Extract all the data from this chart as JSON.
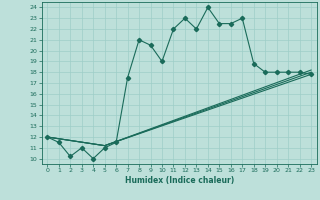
{
  "xlabel": "Humidex (Indice chaleur)",
  "bg_color": "#bde0da",
  "line_color": "#1a6b5a",
  "grid_color": "#9ecec8",
  "xlim": [
    -0.5,
    23.5
  ],
  "ylim": [
    9.5,
    24.5
  ],
  "xticks": [
    0,
    1,
    2,
    3,
    4,
    5,
    6,
    7,
    8,
    9,
    10,
    11,
    12,
    13,
    14,
    15,
    16,
    17,
    18,
    19,
    20,
    21,
    22,
    23
  ],
  "yticks": [
    10,
    11,
    12,
    13,
    14,
    15,
    16,
    17,
    18,
    19,
    20,
    21,
    22,
    23,
    24
  ],
  "line1_x": [
    0,
    1,
    2,
    3,
    4,
    5,
    6,
    7,
    8,
    9,
    10,
    11,
    12,
    13,
    14,
    15,
    16,
    17,
    18,
    19,
    20,
    21,
    22,
    23
  ],
  "line1_y": [
    12,
    11.5,
    10.2,
    11,
    10,
    11,
    11.5,
    17.5,
    21,
    20.5,
    19,
    22,
    23,
    22,
    24,
    22.5,
    22.5,
    23,
    18.8,
    18,
    18,
    18,
    18,
    17.8
  ],
  "line2_x": [
    0,
    5,
    23
  ],
  "line2_y": [
    12,
    11.2,
    17.8
  ],
  "line3_x": [
    0,
    5,
    23
  ],
  "line3_y": [
    12,
    11.2,
    18.0
  ],
  "line4_x": [
    0,
    5,
    23
  ],
  "line4_y": [
    12,
    11.2,
    18.2
  ]
}
